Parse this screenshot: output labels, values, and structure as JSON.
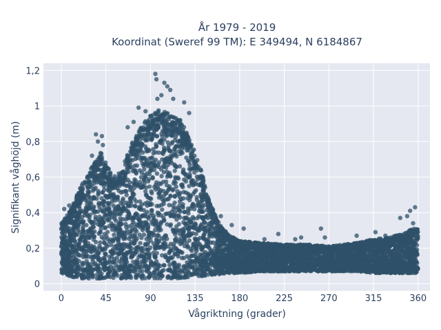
{
  "chart_data": {
    "type": "scatter",
    "title_line1": "År 1979 - 2019",
    "title_line2": "Koordinat (Sweref 99 TM): E 349494, N 6184867",
    "xlabel": "Vågriktning (grader)",
    "ylabel": "Signifikant våghöjd (m)",
    "xlim": [
      -18,
      372
    ],
    "ylim": [
      -0.04,
      1.24
    ],
    "x_ticks": [
      0,
      45,
      90,
      135,
      180,
      225,
      270,
      315,
      360
    ],
    "x_tick_labels": [
      "0",
      "45",
      "90",
      "135",
      "180",
      "225",
      "270",
      "315",
      "360"
    ],
    "y_ticks": [
      0,
      0.2,
      0.4,
      0.6,
      0.8,
      1.0,
      1.2
    ],
    "y_tick_labels": [
      "0",
      "0,2",
      "0,4",
      "0,6",
      "0,8",
      "1",
      "1,2"
    ],
    "grid": true,
    "legend": "none",
    "marker_color": "#2f5068",
    "plot_background": "#e5e8f0",
    "envelope": {
      "description_points_x": [
        0,
        10,
        20,
        30,
        40,
        50,
        60,
        70,
        80,
        90,
        100,
        110,
        120,
        130,
        140,
        150,
        160,
        170,
        180,
        200,
        225,
        250,
        270,
        300,
        315,
        330,
        345,
        355,
        360
      ],
      "upper_y": [
        0.34,
        0.42,
        0.55,
        0.66,
        0.74,
        0.62,
        0.62,
        0.78,
        0.88,
        0.95,
        0.98,
        0.95,
        0.92,
        0.82,
        0.66,
        0.46,
        0.33,
        0.27,
        0.24,
        0.23,
        0.22,
        0.22,
        0.21,
        0.23,
        0.25,
        0.26,
        0.28,
        0.31,
        0.31
      ],
      "lower_y": [
        0.06,
        0.04,
        0.03,
        0.03,
        0.03,
        0.03,
        0.03,
        0.03,
        0.03,
        0.03,
        0.03,
        0.03,
        0.03,
        0.04,
        0.04,
        0.05,
        0.05,
        0.06,
        0.06,
        0.07,
        0.07,
        0.07,
        0.07,
        0.07,
        0.06,
        0.06,
        0.06,
        0.06,
        0.06
      ]
    },
    "outliers": [
      {
        "x": 95,
        "y": 1.18
      },
      {
        "x": 96,
        "y": 1.15
      },
      {
        "x": 104,
        "y": 1.13
      },
      {
        "x": 107,
        "y": 1.11
      },
      {
        "x": 110,
        "y": 1.09
      },
      {
        "x": 101,
        "y": 1.06
      },
      {
        "x": 97,
        "y": 1.04
      },
      {
        "x": 78,
        "y": 0.99
      },
      {
        "x": 85,
        "y": 0.97
      },
      {
        "x": 124,
        "y": 1.02
      },
      {
        "x": 113,
        "y": 1.04
      },
      {
        "x": 129,
        "y": 0.96
      },
      {
        "x": 73,
        "y": 0.91
      },
      {
        "x": 67,
        "y": 0.88
      },
      {
        "x": 35,
        "y": 0.84
      },
      {
        "x": 41,
        "y": 0.83
      },
      {
        "x": 37,
        "y": 0.8
      },
      {
        "x": 42,
        "y": 0.78
      },
      {
        "x": 31,
        "y": 0.72
      },
      {
        "x": 18,
        "y": 0.47
      },
      {
        "x": 13,
        "y": 0.44
      },
      {
        "x": 8,
        "y": 0.44
      },
      {
        "x": 3,
        "y": 0.42
      },
      {
        "x": 161,
        "y": 0.38
      },
      {
        "x": 172,
        "y": 0.33
      },
      {
        "x": 184,
        "y": 0.31
      },
      {
        "x": 219,
        "y": 0.28
      },
      {
        "x": 242,
        "y": 0.26
      },
      {
        "x": 262,
        "y": 0.31
      },
      {
        "x": 266,
        "y": 0.26
      },
      {
        "x": 298,
        "y": 0.27
      },
      {
        "x": 317,
        "y": 0.29
      },
      {
        "x": 327,
        "y": 0.27
      },
      {
        "x": 342,
        "y": 0.37
      },
      {
        "x": 349,
        "y": 0.38
      },
      {
        "x": 352,
        "y": 0.41
      },
      {
        "x": 357,
        "y": 0.43
      },
      {
        "x": 355,
        "y": 0.34
      },
      {
        "x": 205,
        "y": 0.25
      },
      {
        "x": 236,
        "y": 0.25
      }
    ]
  }
}
